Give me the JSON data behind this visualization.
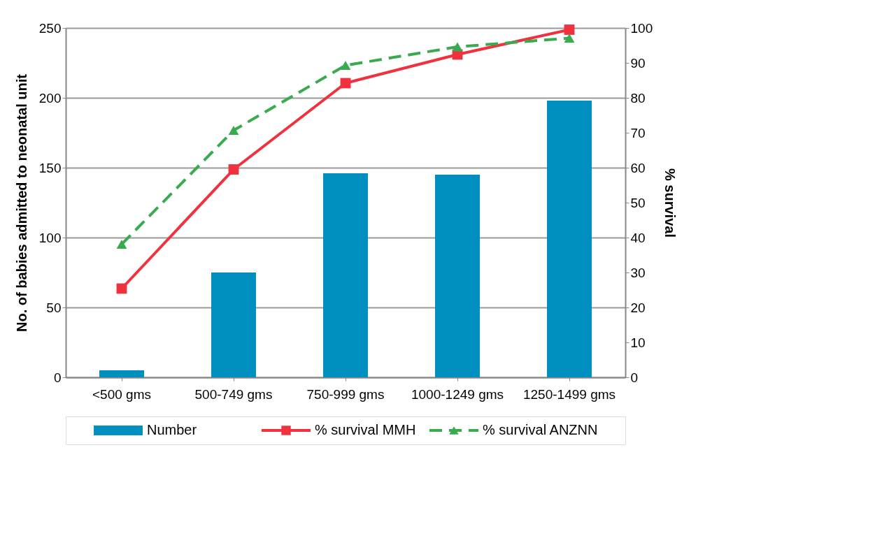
{
  "chart_data": {
    "type": "bar",
    "ylabel": "No. of babies admitted to neonatal unit",
    "y2label": "% survival",
    "categories": [
      "<500 gms",
      "500-749 gms",
      "750-999 gms",
      "1000-1249 gms",
      "1250-1499 gms"
    ],
    "series": [
      {
        "name": "Number",
        "color": "#008fbf",
        "values": [
          5,
          75,
          146,
          145,
          198
        ]
      },
      {
        "name": "% survival MMH",
        "type": "line",
        "axis": "y2",
        "color": "#f0323f",
        "marker": "square",
        "line_style": "solid",
        "values": [
          25.4,
          59.5,
          84.2,
          92.4,
          99.5
        ]
      },
      {
        "name": "% survival ANZNN",
        "type": "line",
        "axis": "y2",
        "color": "#3aaa4f",
        "marker": "triangle",
        "line_style": "dashed",
        "values": [
          38.1,
          70.7,
          89.3,
          94.6,
          97.1
        ]
      }
    ],
    "ylim": [
      0,
      250
    ],
    "yticks": [
      0,
      50,
      100,
      150,
      200,
      250
    ],
    "y2lim": [
      0,
      100
    ],
    "y2ticks": [
      0,
      10,
      20,
      30,
      40,
      50,
      60,
      70,
      80,
      90,
      100
    ],
    "grid": "y",
    "legend": "bottom"
  }
}
